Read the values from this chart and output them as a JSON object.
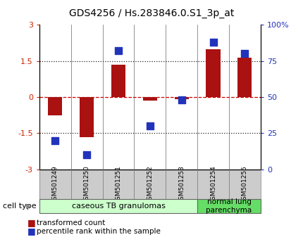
{
  "title": "GDS4256 / Hs.283846.0.S1_3p_at",
  "samples": [
    "GSM501249",
    "GSM501250",
    "GSM501251",
    "GSM501252",
    "GSM501253",
    "GSM501254",
    "GSM501255"
  ],
  "transformed_count": [
    -0.75,
    -1.65,
    1.35,
    -0.15,
    -0.1,
    2.0,
    1.65
  ],
  "percentile_rank": [
    20,
    10,
    82,
    30,
    48,
    88,
    80
  ],
  "ylim_left": [
    -3,
    3
  ],
  "ylim_right": [
    0,
    100
  ],
  "yticks_left": [
    -3,
    -1.5,
    0,
    1.5,
    3
  ],
  "ytick_labels_left": [
    "-3",
    "-1.5",
    "0",
    "1.5",
    "3"
  ],
  "yticks_right": [
    0,
    25,
    50,
    75,
    100
  ],
  "ytick_labels_right": [
    "0",
    "25",
    "50",
    "75",
    "100%"
  ],
  "bar_color": "#aa1111",
  "dot_color": "#2233bb",
  "zero_line_color": "#cc0000",
  "dotted_line_color": "#222222",
  "group0_color": "#ccffcc",
  "group1_color": "#66dd66",
  "sample_box_color": "#cccccc",
  "legend_items": [
    {
      "color": "#aa1111",
      "label": "transformed count"
    },
    {
      "color": "#2233bb",
      "label": "percentile rank within the sample"
    }
  ],
  "cell_type_label": "cell type",
  "bar_width": 0.45,
  "dot_size": 50,
  "title_fontsize": 10,
  "tick_fontsize": 8,
  "sample_fontsize": 6.5,
  "group_fontsize": 8,
  "legend_fontsize": 7.5,
  "cell_type_fontsize": 8
}
